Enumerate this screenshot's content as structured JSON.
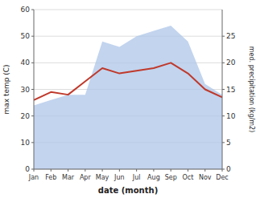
{
  "chart_data": {
    "type": "line",
    "categories": [
      "Jan",
      "Feb",
      "Mar",
      "Apr",
      "May",
      "Jun",
      "Jul",
      "Aug",
      "Sep",
      "Oct",
      "Nov",
      "Dec"
    ],
    "series": [
      {
        "type": "line",
        "color": "#c0392b",
        "values": [
          26,
          29,
          28,
          33,
          38,
          36,
          37,
          38,
          40,
          36,
          30,
          27
        ]
      },
      {
        "type": "area",
        "color": "#aec6e8",
        "axis": "y2",
        "values": [
          12,
          13,
          14,
          14,
          24,
          23,
          25,
          26,
          27,
          24,
          16,
          14
        ]
      }
    ],
    "xlabel": "date (month)",
    "ylabel": "max temp (C)",
    "y2label": "med. precipitation (kg/m2)",
    "ylim": [
      0,
      60
    ],
    "yticks": [
      0,
      10,
      20,
      30,
      40,
      50,
      60
    ],
    "y2lim": [
      0,
      30
    ],
    "y2ticks": [
      0,
      5,
      10,
      15,
      20,
      25
    ],
    "grid": true
  }
}
